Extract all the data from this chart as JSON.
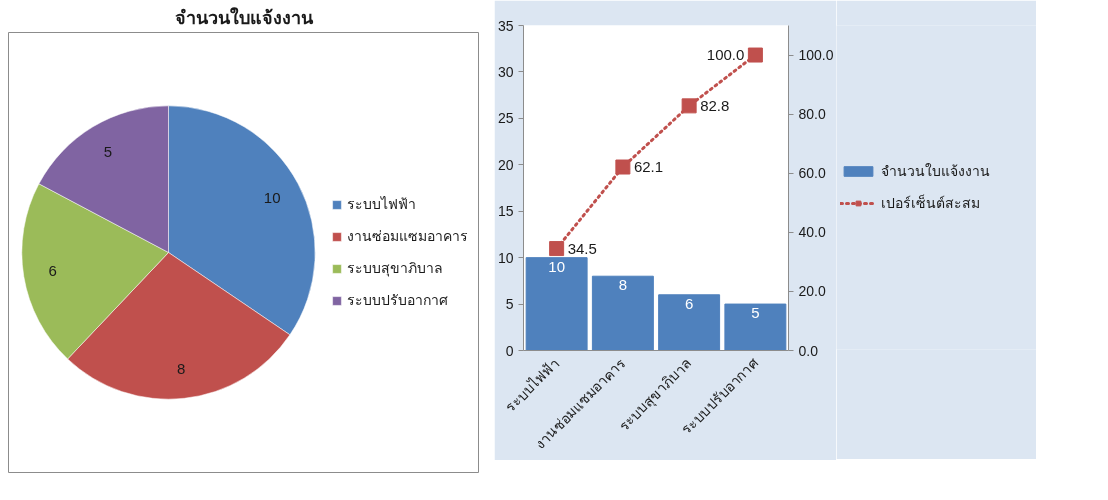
{
  "chart_data": [
    {
      "type": "pie",
      "title": "จำนวนใบแจ้งงาน",
      "categories": [
        "ระบบไฟฟ้า",
        "งานซ่อมแซมอาคาร",
        "ระบบสุขาภิบาล",
        "ระบบปรับอากาศ"
      ],
      "values": [
        10,
        8,
        6,
        5
      ],
      "colors": [
        "#4f81bd",
        "#c0504d",
        "#9bbb59",
        "#8064a2"
      ],
      "data_labels": true,
      "legend": "right"
    },
    {
      "type": "bar",
      "categories": [
        "ระบบไฟฟ้า",
        "งานซ่อมแซมอาคาร",
        "ระบบสุขาภิบาล",
        "ระบบปรับอากาศ"
      ],
      "series": [
        {
          "name": "จำนวนใบแจ้งงาน",
          "color": "#4f81bd",
          "values": [
            10,
            8,
            6,
            5
          ],
          "value_labels": [
            "10",
            "8",
            "6",
            "5"
          ]
        },
        {
          "name": "เปอร์เซ็นต์สะสม",
          "type": "line",
          "axis": "y2",
          "color": "#c0504d",
          "values": [
            34.5,
            62.1,
            82.8,
            100.0
          ],
          "value_labels": [
            "34.5",
            "62.1",
            "82.8",
            "100.0"
          ],
          "marker": "square",
          "line_style": "dotted"
        }
      ],
      "ylim": [
        0,
        35
      ],
      "yticks": [
        0,
        5,
        10,
        15,
        20,
        25,
        30,
        35
      ],
      "y2lim": [
        0,
        110
      ],
      "y2ticks": [
        {
          "value": 0,
          "label": "0.0"
        },
        {
          "value": 20,
          "label": "20.0"
        },
        {
          "value": 40,
          "label": "40.0"
        },
        {
          "value": 60,
          "label": "60.0"
        },
        {
          "value": 80,
          "label": "80.0"
        },
        {
          "value": 100,
          "label": "100.0"
        }
      ],
      "grid": false,
      "legend": "right"
    }
  ]
}
